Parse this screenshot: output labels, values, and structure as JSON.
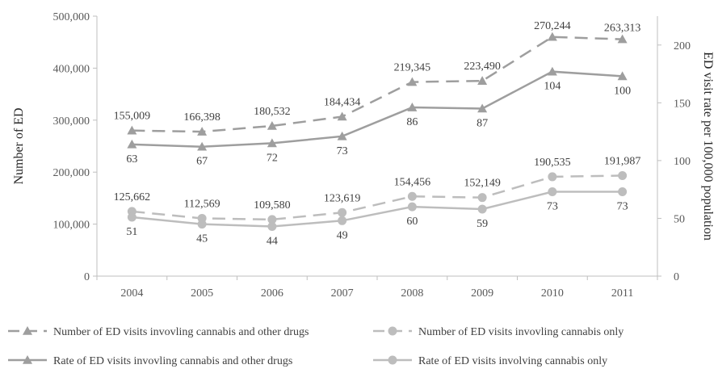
{
  "chart_data": {
    "type": "line",
    "x": [
      "2004",
      "2005",
      "2006",
      "2007",
      "2008",
      "2009",
      "2010",
      "2011"
    ],
    "ylabel_left": "Number of ED",
    "ylabel_right": "ED visit rate per 100,000 population",
    "ylim_left": [
      0,
      500000
    ],
    "ylim_right": [
      0,
      225
    ],
    "yticks_left": [
      "0",
      "100,000",
      "200,000",
      "300,000",
      "400,000",
      "500,000"
    ],
    "yticks_right": [
      "0",
      "50",
      "100",
      "150",
      "200"
    ],
    "grid": false,
    "legend_position": "bottom",
    "series": [
      {
        "name": "Number of ED visits invovling cannabis and other drugs",
        "axis": "left",
        "style": "dashed",
        "marker": "triangle",
        "color": "#9e9e9e",
        "values": [
          155009,
          166398,
          180532,
          184434,
          219345,
          223490,
          270244,
          263313
        ],
        "labels": [
          "155,009",
          "166,398",
          "180,532",
          "184,434",
          "219,345",
          "223,490",
          "270,244",
          "263,313"
        ]
      },
      {
        "name": "Number of ED visits invovling cannabis only",
        "axis": "left",
        "style": "dashed",
        "marker": "circle",
        "color": "#bdbdbd",
        "values": [
          125662,
          112569,
          109580,
          123619,
          154456,
          152149,
          190535,
          191987
        ],
        "labels": [
          "125,662",
          "112,569",
          "109,580",
          "123,619",
          "154,456",
          "152,149",
          "190,535",
          "191,987"
        ]
      },
      {
        "name": "Rate of ED visits invovling cannabis and other drugs",
        "axis": "right",
        "style": "solid",
        "marker": "triangle",
        "color": "#9e9e9e",
        "values": [
          63,
          67,
          72,
          73,
          86,
          87,
          104,
          100
        ],
        "labels": [
          "63",
          "67",
          "72",
          "73",
          "86",
          "87",
          "104",
          "100"
        ]
      },
      {
        "name": "Rate of ED visits involving cannabis only",
        "axis": "right",
        "style": "solid",
        "marker": "circle",
        "color": "#bdbdbd",
        "values": [
          51,
          45,
          44,
          49,
          60,
          59,
          73,
          73
        ],
        "labels": [
          "51",
          "45",
          "44",
          "49",
          "60",
          "59",
          "73",
          "73"
        ]
      }
    ],
    "plotted_series": [
      {
        "series": 0,
        "axis": "right",
        "values": [
          126,
          125,
          130,
          138,
          168,
          169,
          207,
          205
        ]
      },
      {
        "series": 1,
        "axis": "right",
        "values": [
          56,
          50,
          49,
          55,
          69,
          68,
          86,
          87
        ]
      },
      {
        "series": 2,
        "axis": "right",
        "values": [
          114,
          112,
          115,
          121,
          146,
          145,
          177,
          173
        ]
      },
      {
        "series": 3,
        "axis": "right",
        "values": [
          51,
          45,
          43,
          48,
          60,
          58,
          73,
          73
        ]
      }
    ]
  }
}
